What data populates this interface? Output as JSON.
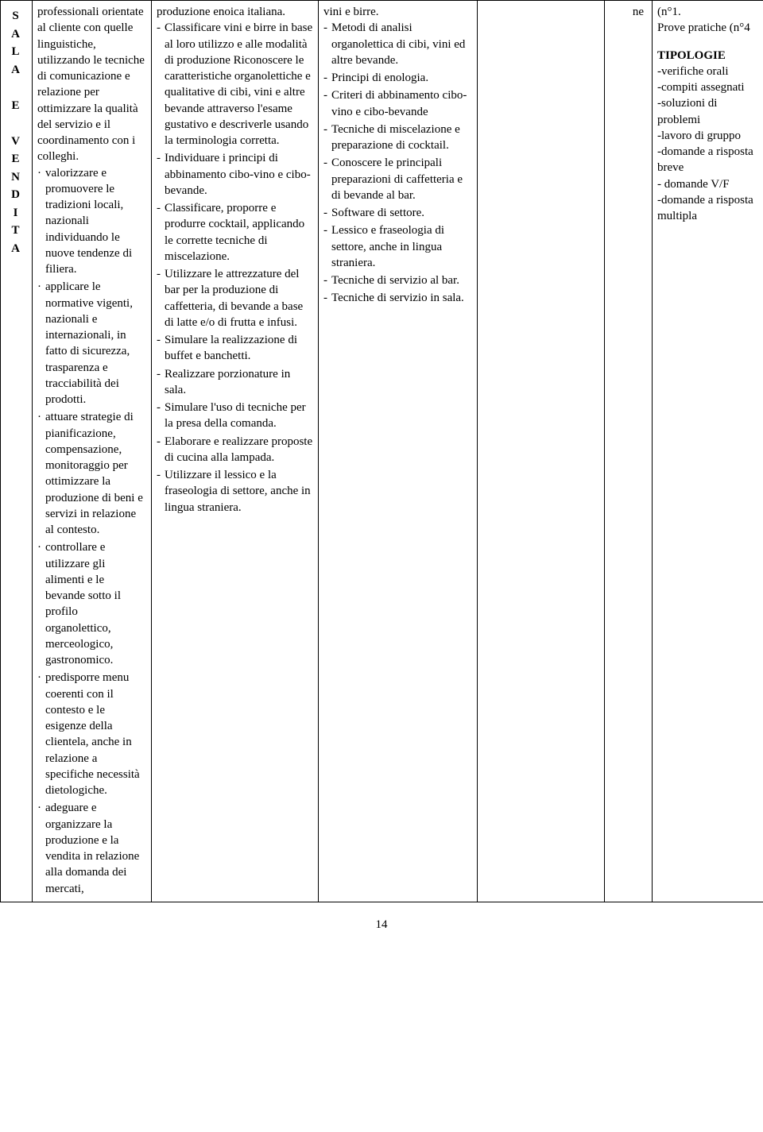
{
  "vertical_label": [
    "S",
    "A",
    "L",
    "A",
    "",
    "E",
    "",
    "V",
    "E",
    "N",
    "D",
    "I",
    "T",
    "A"
  ],
  "col2_lead": "professionali orientate al cliente con quelle linguistiche, utilizzando le tecniche di comunicazione e relazione per ottimizzare la qualità del servizio e il coordinamento con i colleghi.",
  "col2_items": [
    "valorizzare e promuovere le tradizioni locali, nazionali individuando le nuove tendenze di filiera.",
    "applicare le normative vigenti, nazionali e internazionali, in fatto di sicurezza, trasparenza e tracciabilità dei prodotti.",
    "attuare strategie di pianificazione, compensazione, monitoraggio per ottimizzare la produzione di beni e servizi in relazione al contesto.",
    "controllare e utilizzare gli alimenti e le bevande sotto il profilo organolettico, merceologico, gastronomico.",
    "predisporre menu coerenti con il contesto e le esigenze della clientela, anche in relazione a specifiche necessità dietologiche.",
    "adeguare e organizzare la produzione e la vendita in relazione alla domanda dei mercati,"
  ],
  "col3_lead": "produzione enoica italiana.",
  "col3_items": [
    "Classificare vini e birre in base al loro utilizzo e alle modalità di produzione Riconoscere le caratteristiche organolettiche e qualitative di cibi, vini e altre bevande attraverso l'esame gustativo e descriverle usando la terminologia corretta.",
    "Individuare i principi di abbinamento cibo-vino e cibo-bevande.",
    "Classificare, proporre e produrre cocktail, applicando le corrette tecniche di miscelazione.",
    "Utilizzare le attrezzature del bar per la produzione di caffetteria, di bevande a base di latte e/o di frutta e infusi.",
    "Simulare la realizzazione di buffet e banchetti.",
    "Realizzare porzionature in sala.",
    "Simulare l'uso di tecniche per la presa della comanda.",
    "Elaborare e realizzare proposte di cucina alla lampada.",
    "Utilizzare il lessico e la fraseologia di settore, anche in lingua straniera."
  ],
  "col4_lead": "vini e birre.",
  "col4_items": [
    "Metodi di analisi organolettica di cibi, vini ed altre bevande.",
    "Principi di enologia.",
    "Criteri di abbinamento cibo-vino e cibo-bevande",
    "Tecniche di miscelazione e preparazione di cocktail.",
    "Conoscere le principali preparazioni di caffetteria e di bevande al bar.",
    "Software di settore.",
    "Lessico e fraseologia di settore, anche in lingua straniera.",
    "Tecniche di servizio al bar.",
    "Tecniche di servizio in sala."
  ],
  "col6_text": "ne",
  "col7_line1": "(n°1.",
  "col7_line2": "Prove pratiche (n°4",
  "col7_tip_title": "TIPOLOGIE",
  "col7_tip_items": [
    "-verifiche orali",
    "-compiti assegnati",
    "-soluzioni di problemi",
    "-lavoro di gruppo",
    "-domande a risposta breve",
    "- domande V/F",
    "-domande a risposta multipla"
  ],
  "page_number": "14"
}
